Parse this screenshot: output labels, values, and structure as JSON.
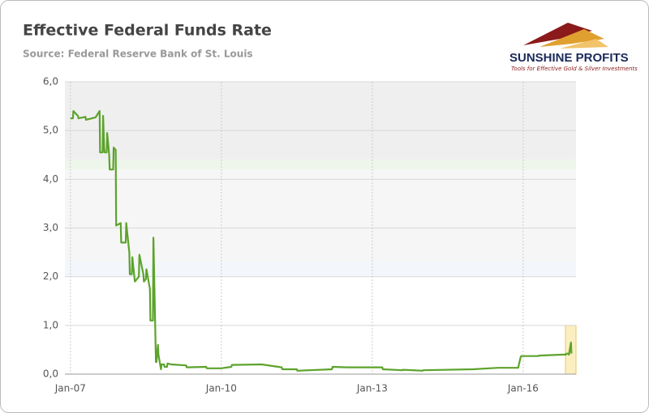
{
  "brand": {
    "name": "SUNSHINE PROFITS",
    "tagline": "Tools for Effective Gold & Silver Investments"
  },
  "chart_data": {
    "type": "line",
    "title": "Effective Federal Funds Rate",
    "subtitle": "Source: Federal Reserve Bank of St. Louis",
    "color": "#5ca32c",
    "grid": true,
    "xlim": [
      2006.89,
      2017.05
    ],
    "ylim": [
      0,
      6
    ],
    "xticks": [
      {
        "value": 2007,
        "label": "Jan-07"
      },
      {
        "value": 2010,
        "label": "Jan-10"
      },
      {
        "value": 2013,
        "label": "Jan-13"
      },
      {
        "value": 2016,
        "label": "Jan-16"
      }
    ],
    "yticks": [
      {
        "value": 0,
        "label": "0,0"
      },
      {
        "value": 1,
        "label": "1,0"
      },
      {
        "value": 2,
        "label": "2,0"
      },
      {
        "value": 3,
        "label": "3,0"
      },
      {
        "value": 4,
        "label": "4,0"
      },
      {
        "value": 5,
        "label": "5,0"
      },
      {
        "value": 6,
        "label": "6,0"
      }
    ],
    "x": [
      2007.0,
      2007.05,
      2007.06,
      2007.15,
      2007.16,
      2007.3,
      2007.31,
      2007.5,
      2007.58,
      2007.59,
      2007.64,
      2007.65,
      2007.67,
      2007.68,
      2007.72,
      2007.73,
      2007.77,
      2007.78,
      2007.85,
      2007.86,
      2007.9,
      2007.91,
      2008.0,
      2008.01,
      2008.1,
      2008.11,
      2008.17,
      2008.18,
      2008.22,
      2008.23,
      2008.27,
      2008.28,
      2008.36,
      2008.37,
      2008.45,
      2008.46,
      2008.5,
      2008.51,
      2008.58,
      2008.59,
      2008.64,
      2008.65,
      2008.7,
      2008.71,
      2008.74,
      2008.75,
      2008.8,
      2008.81,
      2008.86,
      2008.87,
      2008.92,
      2008.93,
      2009.0,
      2009.3,
      2009.31,
      2009.7,
      2009.71,
      2010.0,
      2010.2,
      2010.21,
      2010.8,
      2011.2,
      2011.21,
      2011.5,
      2011.51,
      2012.2,
      2012.21,
      2012.5,
      2013.2,
      2013.21,
      2013.6,
      2013.61,
      2014.0,
      2014.01,
      2015.0,
      2015.5,
      2015.9,
      2015.95,
      2015.96,
      2016.3,
      2016.31,
      2016.8,
      2016.85,
      2016.86,
      2016.9,
      2016.91,
      2016.95,
      2016.96
    ],
    "values": [
      5.25,
      5.25,
      5.4,
      5.3,
      5.25,
      5.28,
      5.22,
      5.27,
      5.4,
      4.55,
      4.55,
      5.3,
      4.65,
      4.55,
      4.55,
      4.95,
      4.5,
      4.2,
      4.2,
      4.65,
      4.6,
      3.05,
      3.1,
      2.7,
      2.7,
      3.1,
      2.5,
      2.05,
      2.05,
      2.4,
      2.0,
      1.9,
      2.0,
      2.45,
      2.05,
      1.9,
      1.95,
      2.15,
      1.75,
      1.1,
      1.1,
      2.8,
      0.25,
      0.25,
      0.6,
      0.4,
      0.1,
      0.2,
      0.2,
      0.15,
      0.15,
      0.22,
      0.2,
      0.18,
      0.14,
      0.15,
      0.12,
      0.12,
      0.15,
      0.19,
      0.2,
      0.14,
      0.1,
      0.1,
      0.07,
      0.1,
      0.15,
      0.14,
      0.14,
      0.1,
      0.08,
      0.09,
      0.07,
      0.08,
      0.1,
      0.13,
      0.13,
      0.35,
      0.37,
      0.37,
      0.38,
      0.4,
      0.4,
      0.42,
      0.42,
      0.4,
      0.65,
      0.42
    ]
  }
}
